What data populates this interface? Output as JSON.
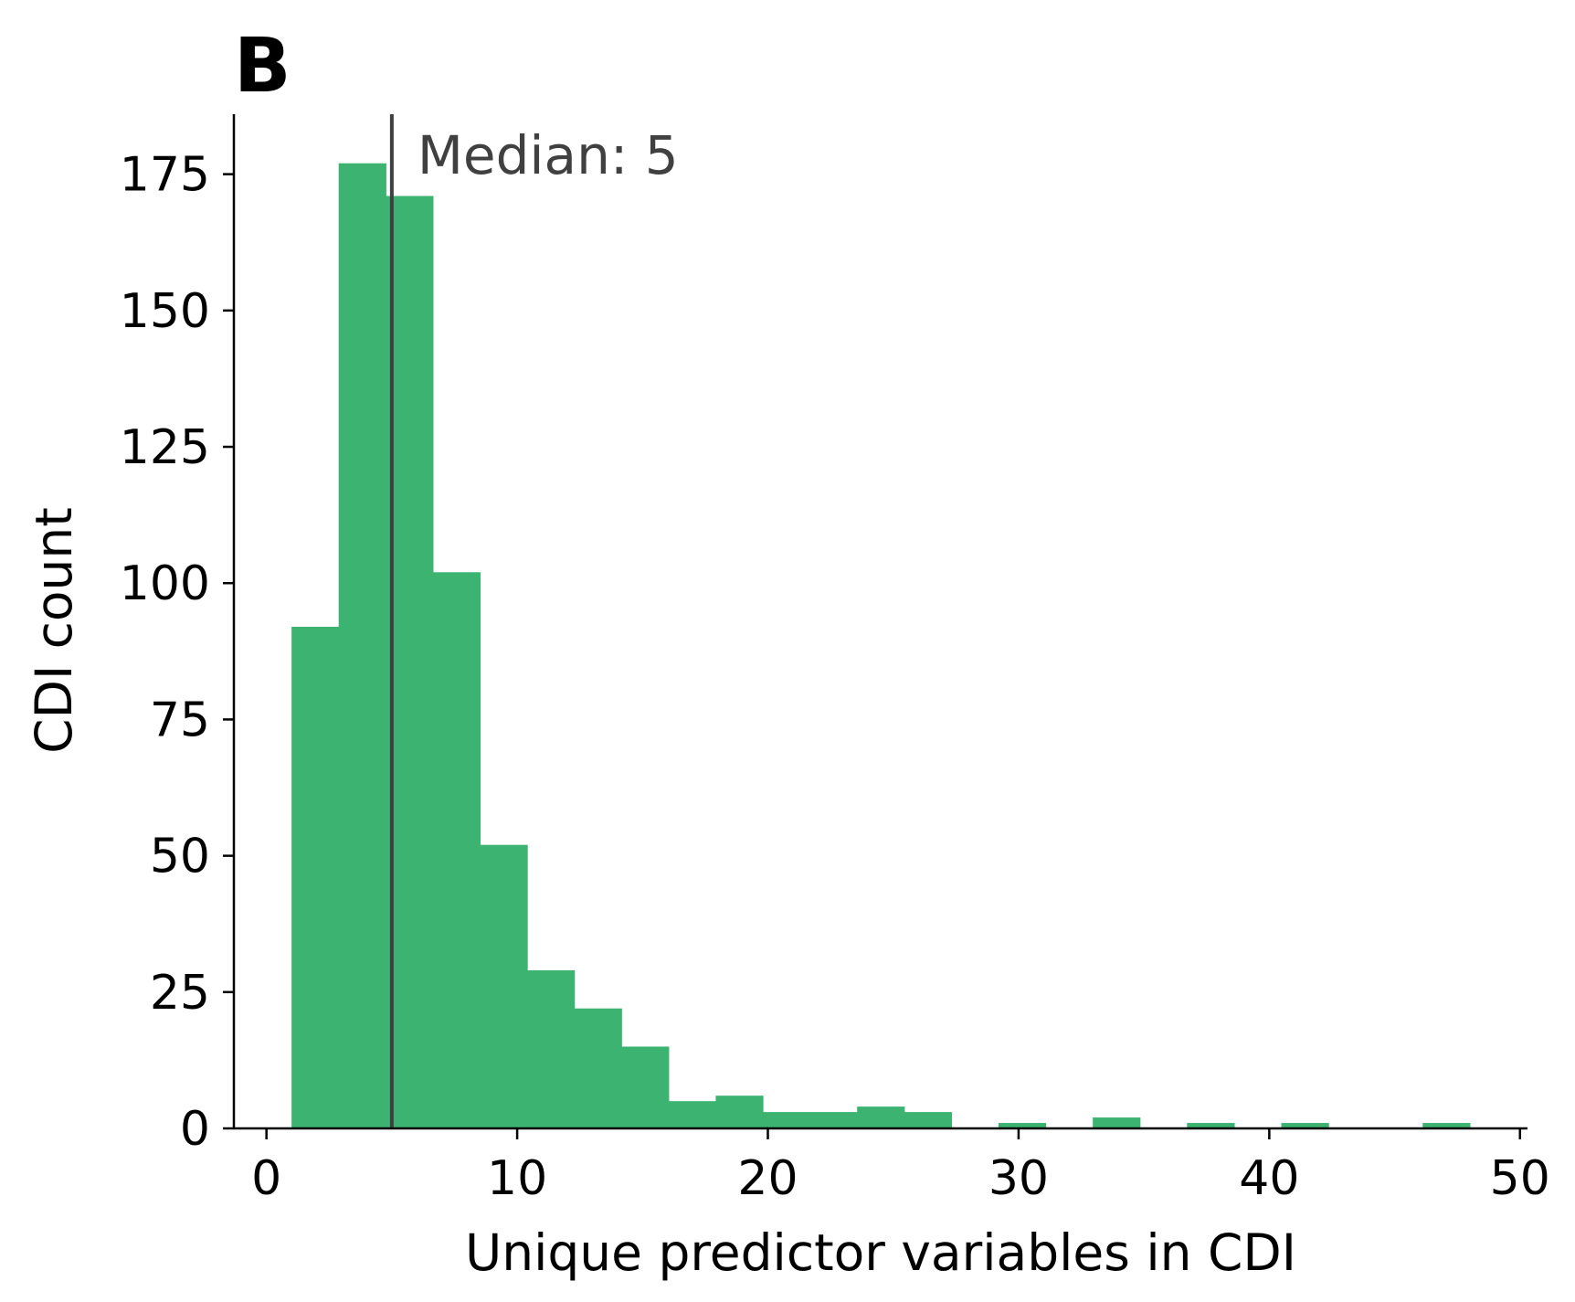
{
  "panel_label": "B",
  "colors": {
    "bar": "#3cb371",
    "median_line": "#404040",
    "axis": "#000000"
  },
  "chart_data": {
    "type": "bar",
    "title": "",
    "xlabel": "Unique predictor variables in CDI",
    "ylabel": "CDI count",
    "xlim": [
      -1.3,
      50.3
    ],
    "ylim": [
      0,
      186
    ],
    "xticks": [
      0,
      10,
      20,
      30,
      40,
      50
    ],
    "xtick_labels": [
      "0",
      "10",
      "20",
      "30",
      "40",
      "50"
    ],
    "yticks": [
      0,
      25,
      50,
      75,
      100,
      125,
      150,
      175
    ],
    "ytick_labels": [
      "0",
      "25",
      "50",
      "75",
      "100",
      "125",
      "150",
      "175"
    ],
    "grid": false,
    "bins": [
      {
        "x0": 1.0,
        "x1": 2.88,
        "count": 92
      },
      {
        "x0": 2.88,
        "x1": 4.76,
        "count": 177
      },
      {
        "x0": 4.76,
        "x1": 6.64,
        "count": 171
      },
      {
        "x0": 6.64,
        "x1": 8.52,
        "count": 102
      },
      {
        "x0": 8.52,
        "x1": 10.4,
        "count": 52
      },
      {
        "x0": 10.4,
        "x1": 12.28,
        "count": 29
      },
      {
        "x0": 12.28,
        "x1": 14.16,
        "count": 22
      },
      {
        "x0": 14.16,
        "x1": 16.04,
        "count": 15
      },
      {
        "x0": 16.04,
        "x1": 17.92,
        "count": 5
      },
      {
        "x0": 17.92,
        "x1": 19.8,
        "count": 6
      },
      {
        "x0": 19.8,
        "x1": 21.68,
        "count": 3
      },
      {
        "x0": 21.68,
        "x1": 23.56,
        "count": 3
      },
      {
        "x0": 23.56,
        "x1": 25.44,
        "count": 4
      },
      {
        "x0": 25.44,
        "x1": 27.32,
        "count": 3
      },
      {
        "x0": 29.2,
        "x1": 31.08,
        "count": 1
      },
      {
        "x0": 32.96,
        "x1": 34.84,
        "count": 2
      },
      {
        "x0": 36.72,
        "x1": 38.6,
        "count": 1
      },
      {
        "x0": 40.48,
        "x1": 42.36,
        "count": 1
      },
      {
        "x0": 46.12,
        "x1": 48.0,
        "count": 1
      }
    ],
    "median": {
      "value": 5,
      "label": "Median: 5"
    }
  }
}
